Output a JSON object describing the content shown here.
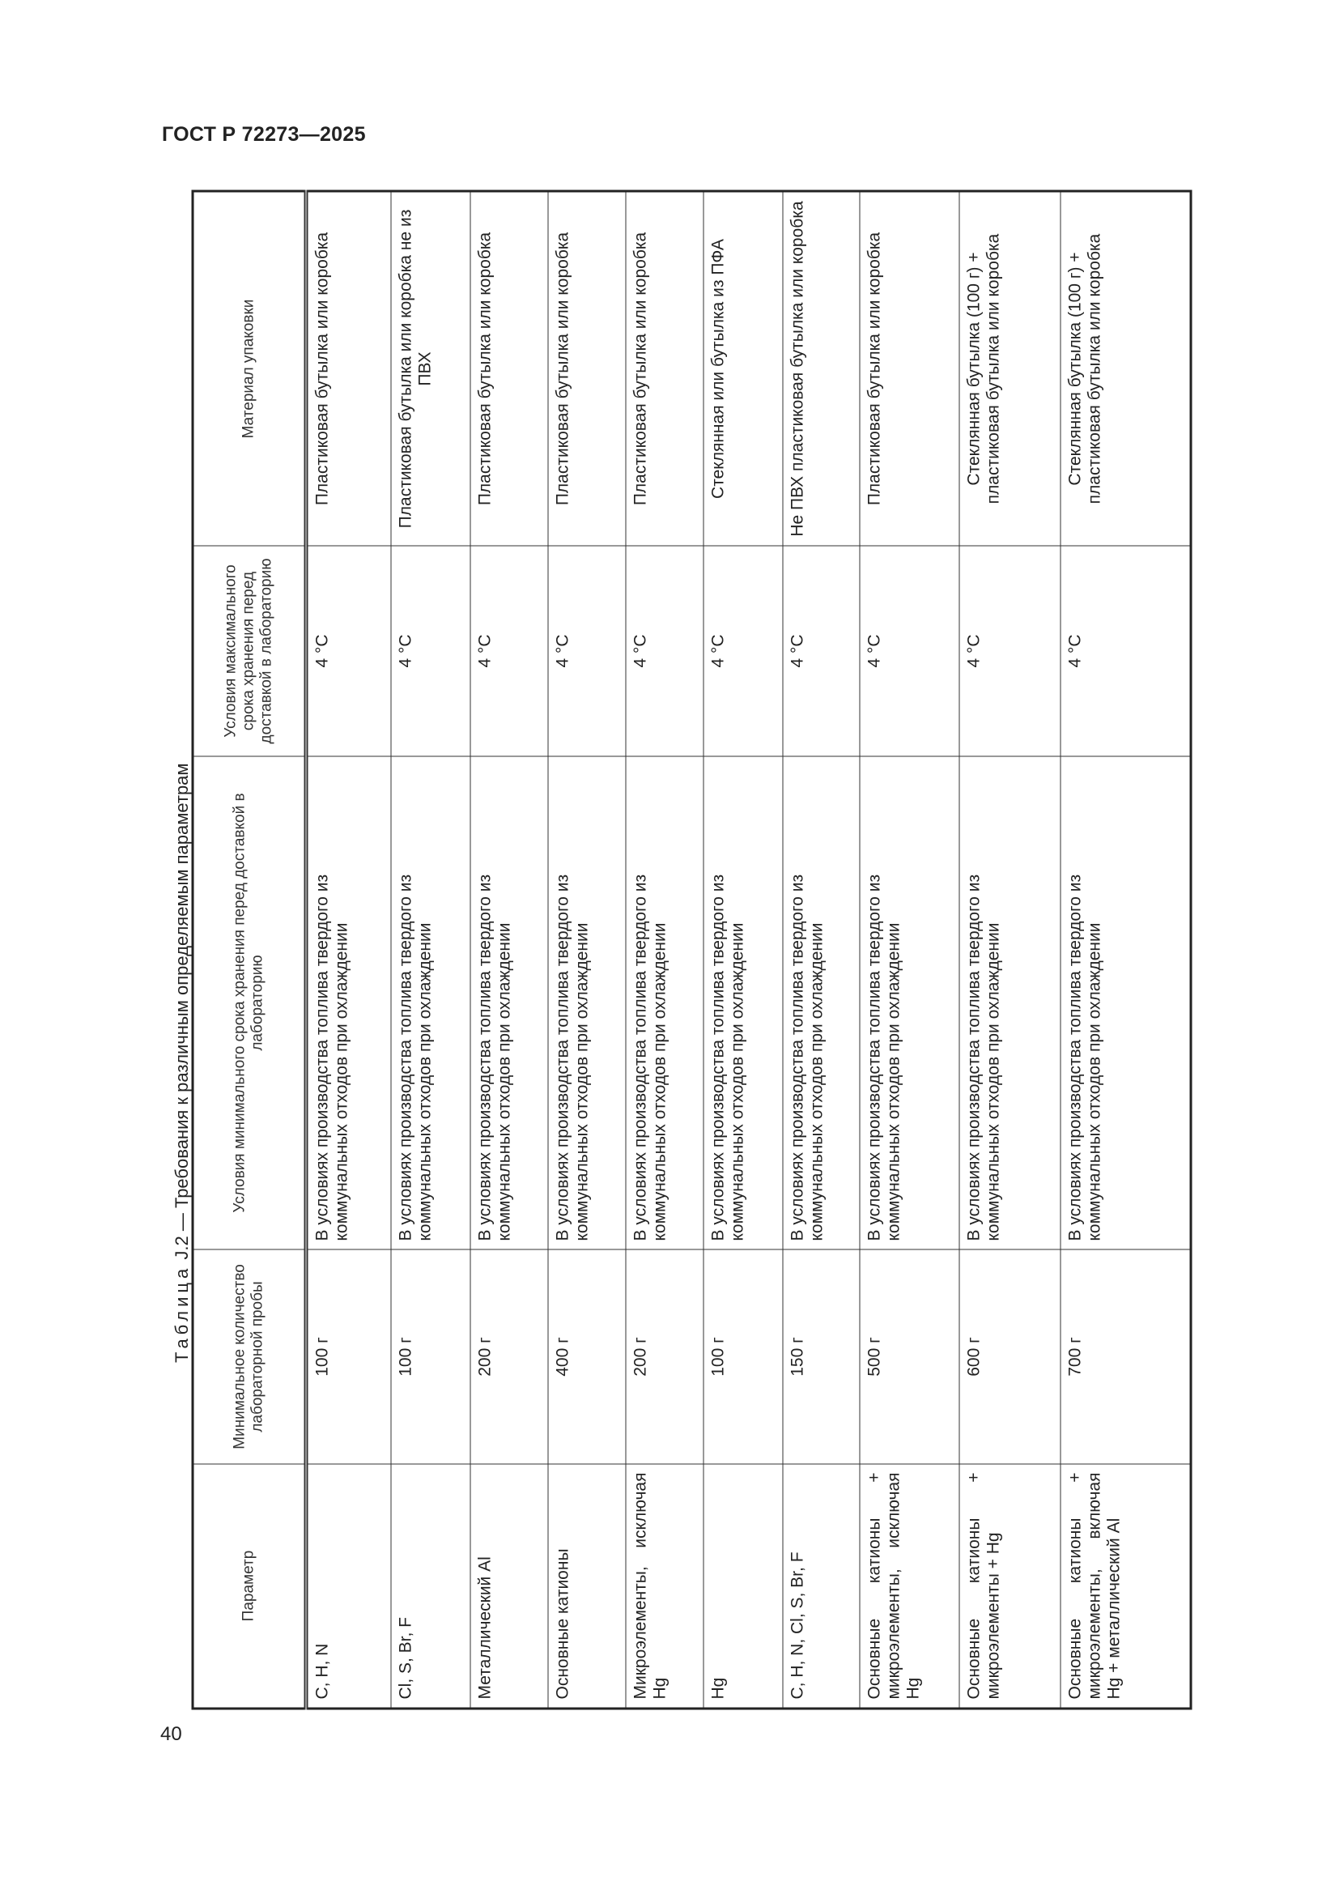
{
  "header": {
    "document_title": "ГОСТ Р 72273—2025"
  },
  "page_number": "40",
  "caption": {
    "prefix": "Таблица",
    "number": "J.2",
    "text": "— Требования к различным определяемым параметрам"
  },
  "table": {
    "columns": [
      "Параметр",
      "Минимальное количество лабораторной пробы",
      "Условия минимального срока хранения перед доставкой в лабораторию",
      "Условия максимального срока хранения перед доставкой в лабораторию",
      "Материал упаковки"
    ],
    "rows": [
      [
        "C, H, N",
        "100 г",
        "В условиях производства топлива твердого из коммунальных отходов при охлаждении",
        "4 °C",
        "Пластиковая бутылка или коробка"
      ],
      [
        "Cl, S, Br, F",
        "100 г",
        "В условиях производства топлива твердого из коммунальных отходов при охлаждении",
        "4 °C",
        "Пластиковая бутылка или коробка не из ПВХ"
      ],
      [
        "Металлический Al",
        "200 г",
        "В условиях производства топлива твердого из коммунальных отходов при охлаждении",
        "4 °C",
        "Пластиковая бутылка или коробка"
      ],
      [
        "Основные катионы",
        "400 г",
        "В условиях производства топлива твердого из коммунальных отходов при охлаждении",
        "4 °C",
        "Пластиковая бутылка или коробка"
      ],
      [
        "Микроэлементы, исключая Hg",
        "200 г",
        "В условиях производства топлива твердого из коммунальных отходов при охлаждении",
        "4 °C",
        "Пластиковая бутылка или коробка"
      ],
      [
        "Hg",
        "100 г",
        "В условиях производства топлива твердого из коммунальных отходов при охлаждении",
        "4 °C",
        "Стеклянная или бутылка из ПФА"
      ],
      [
        "C, H, N, Cl, S, Br, F",
        "150 г",
        "В условиях производства топлива твердого из коммунальных отходов при охлаждении",
        "4 °C",
        "Не ПВХ пластиковая бутылка или коробка"
      ],
      [
        "Основные катионы + микроэлементы, исключая Hg",
        "500 г",
        "В условиях производства топлива твердого из коммунальных отходов при охлаждении",
        "4 °C",
        "Пластиковая бутылка или коробка"
      ],
      [
        "Основные катионы + микроэлементы + Hg",
        "600 г",
        "В условиях производства топлива твердого из коммунальных отходов при охлаждении",
        "4 °C",
        "Стеклянная бутылка (100 г) + пластиковая бутылка или коробка"
      ],
      [
        "Основные катионы + микроэлементы, включая Hg + металлический Al",
        "700 г",
        "В условиях производства топлива твердого из коммунальных отходов при охлаждении",
        "4 °C",
        "Стеклянная бутылка (100 г) + пластиковая бутылка или коробка"
      ]
    ]
  }
}
